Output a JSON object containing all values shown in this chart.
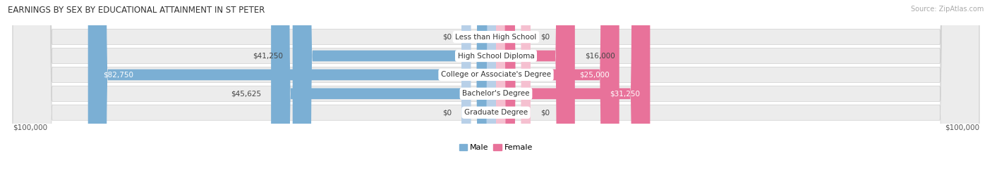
{
  "title": "EARNINGS BY SEX BY EDUCATIONAL ATTAINMENT IN ST PETER",
  "source": "Source: ZipAtlas.com",
  "categories": [
    "Less than High School",
    "High School Diploma",
    "College or Associate's Degree",
    "Bachelor's Degree",
    "Graduate Degree"
  ],
  "male_values": [
    0,
    41250,
    82750,
    45625,
    0
  ],
  "female_values": [
    0,
    16000,
    25000,
    31250,
    0
  ],
  "male_color": "#7bafd4",
  "female_color": "#e8729a",
  "male_color_zero": "#b8d0e8",
  "female_color_zero": "#f5c0d0",
  "row_bg_color": "#ececec",
  "max_value": 100000,
  "x_label_left": "$100,000",
  "x_label_right": "$100,000",
  "title_fontsize": 8.5,
  "source_fontsize": 7,
  "label_fontsize": 7.5,
  "category_fontsize": 7.5,
  "legend_fontsize": 8,
  "figsize": [
    14.06,
    2.69
  ],
  "dpi": 100
}
